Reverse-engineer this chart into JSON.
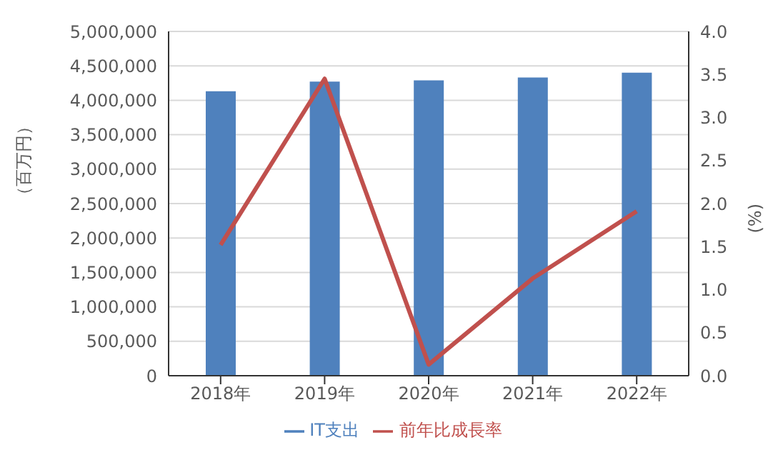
{
  "chart_data": {
    "type": "bar",
    "categories": [
      "2018年",
      "2019年",
      "2020年",
      "2021年",
      "2022年"
    ],
    "series": [
      {
        "name": "IT支出",
        "color": "#4f81bd",
        "values": [
          4130000,
          4270000,
          4290000,
          4330000,
          4400000
        ]
      },
      {
        "name": "前年比成長率",
        "type": "line",
        "axis": "y2",
        "color": "#c0504d",
        "values": [
          1.52,
          3.45,
          0.13,
          1.13,
          1.91
        ]
      }
    ],
    "ylabel": "（百万円）",
    "y2label": "(%)",
    "ylim": [
      0,
      5000000
    ],
    "yticks": [
      0,
      {
        "value": 500000,
        "label": "500,000"
      },
      {
        "value": 1000000,
        "label": "1,000,000"
      },
      {
        "value": 1500000,
        "label": "1,500,000"
      },
      {
        "value": 2000000,
        "label": "2,000,000"
      },
      {
        "value": 2500000,
        "label": "2,500,000"
      },
      {
        "value": 3000000,
        "label": "3,000,000"
      },
      {
        "value": 3500000,
        "label": "3,500,000"
      },
      {
        "value": 4000000,
        "label": "4,000,000"
      },
      {
        "value": 4500000,
        "label": "4,500,000"
      },
      {
        "value": 5000000,
        "label": "5,000,000"
      }
    ],
    "y2lim": [
      0,
      4
    ],
    "y2ticks": [
      {
        "value": 0,
        "label": "0.0"
      },
      {
        "value": 0.5,
        "label": "0.5"
      },
      {
        "value": 1,
        "label": "1.0"
      },
      {
        "value": 1.5,
        "label": "1.5"
      },
      {
        "value": 2,
        "label": "2.0"
      },
      {
        "value": 2.5,
        "label": "2.5"
      },
      {
        "value": 3,
        "label": "3.0"
      },
      {
        "value": 3.5,
        "label": "3.5"
      },
      {
        "value": 4,
        "label": "4.0"
      }
    ],
    "grid": "y",
    "legend": "bottom",
    "marker": "none",
    "line_style": "solid"
  }
}
